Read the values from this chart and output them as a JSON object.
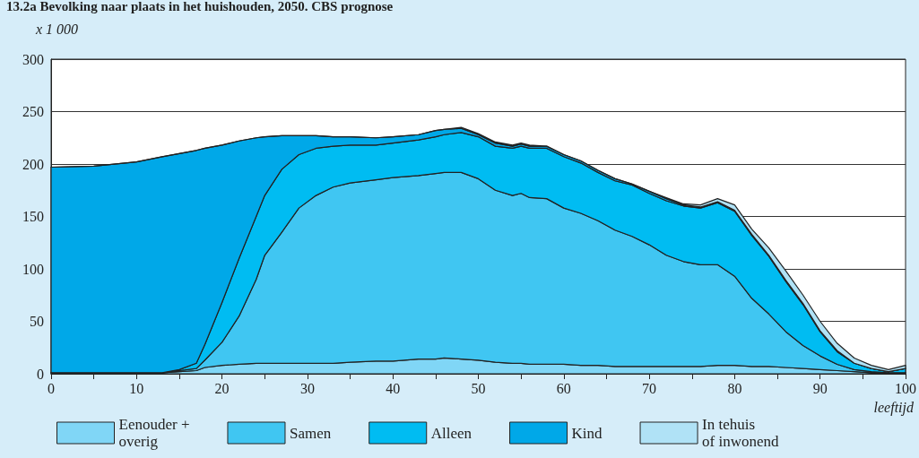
{
  "chart_data": {
    "type": "area",
    "stacked": true,
    "title": "13.2a Bevolking naar plaats in het huishouden, 2050. CBS prognose",
    "xlabel": "leeftijd",
    "ylabel": "x 1 000",
    "x": [
      0,
      5,
      10,
      13,
      15,
      17,
      18,
      20,
      22,
      24,
      25,
      27,
      29,
      31,
      33,
      35,
      38,
      40,
      43,
      45,
      46,
      48,
      50,
      52,
      54,
      55,
      56,
      58,
      60,
      62,
      64,
      66,
      68,
      70,
      72,
      74,
      76,
      78,
      80,
      82,
      84,
      86,
      88,
      90,
      92,
      94,
      96,
      98,
      100
    ],
    "series": [
      {
        "name": "Eenouder +\noverig",
        "color": "#80d6f6",
        "values": [
          1,
          1,
          1,
          1,
          2,
          3,
          6,
          8,
          9,
          10,
          10,
          10,
          10,
          10,
          10,
          11,
          12,
          12,
          14,
          14,
          15,
          14,
          13,
          11,
          10,
          10,
          9,
          9,
          9,
          8,
          8,
          7,
          7,
          7,
          7,
          7,
          7,
          8,
          8,
          7,
          7,
          6,
          5,
          4,
          3,
          2,
          1,
          1,
          1
        ]
      },
      {
        "name": "Samen",
        "color": "#40c6f2",
        "values": [
          0,
          0,
          0,
          0,
          1,
          2,
          7,
          22,
          46,
          80,
          103,
          125,
          148,
          160,
          168,
          171,
          173,
          175,
          175,
          177,
          177,
          178,
          173,
          164,
          160,
          162,
          159,
          158,
          149,
          145,
          138,
          130,
          124,
          116,
          106,
          100,
          97,
          96,
          85,
          65,
          50,
          34,
          22,
          13,
          6,
          2,
          1,
          0,
          0
        ]
      },
      {
        "name": "Alleen",
        "color": "#00bcf2",
        "values": [
          0,
          0,
          0,
          0,
          1,
          5,
          15,
          38,
          55,
          60,
          57,
          60,
          51,
          45,
          39,
          36,
          33,
          33,
          34,
          35,
          36,
          38,
          40,
          42,
          45,
          45,
          47,
          48,
          49,
          48,
          46,
          47,
          49,
          49,
          52,
          53,
          54,
          59,
          62,
          60,
          55,
          48,
          39,
          23,
          12,
          6,
          3,
          1,
          4
        ]
      },
      {
        "name": "Kind",
        "color": "#00a8e8",
        "values": [
          196,
          197,
          201,
          206,
          206,
          203,
          187,
          150,
          112,
          75,
          56,
          32,
          18,
          12,
          9,
          8,
          7,
          6,
          5,
          6,
          5,
          4,
          2,
          3,
          2,
          2,
          2,
          2,
          2,
          2,
          2,
          2,
          1,
          2,
          2,
          1,
          1,
          1,
          1,
          1,
          1,
          1,
          1,
          1,
          1,
          0,
          0,
          0,
          0
        ]
      },
      {
        "name": "In tehuis\nof inwonend",
        "color": "#b0e2f6",
        "values": [
          0,
          0,
          0,
          0,
          0,
          0,
          0,
          0,
          0,
          0,
          0,
          0,
          0,
          0,
          0,
          0,
          0,
          0,
          0,
          0,
          0,
          1,
          1,
          1,
          1,
          1,
          1,
          0,
          0,
          0,
          0,
          0,
          0,
          0,
          1,
          1,
          2,
          3,
          5,
          5,
          7,
          9,
          8,
          9,
          7,
          5,
          3,
          2,
          3
        ]
      }
    ],
    "xlim": [
      0,
      100
    ],
    "xticks": [
      0,
      {
        "value": 5,
        "label": null
      },
      10,
      {
        "value": 15,
        "label": null
      },
      20,
      {
        "value": 25,
        "label": null
      },
      30,
      {
        "value": 35,
        "label": null
      },
      40,
      {
        "value": 45,
        "label": null
      },
      50,
      {
        "value": 55,
        "label": null
      },
      60,
      {
        "value": 65,
        "label": null
      },
      70,
      {
        "value": 75,
        "label": null
      },
      80,
      {
        "value": 85,
        "label": null
      },
      90,
      {
        "value": 95,
        "label": null
      },
      100
    ],
    "ylim": [
      0,
      300
    ],
    "yticks": [
      0,
      50,
      100,
      150,
      200,
      250,
      300
    ],
    "grid": "y",
    "legend": "bottom",
    "line_style": "solid"
  }
}
